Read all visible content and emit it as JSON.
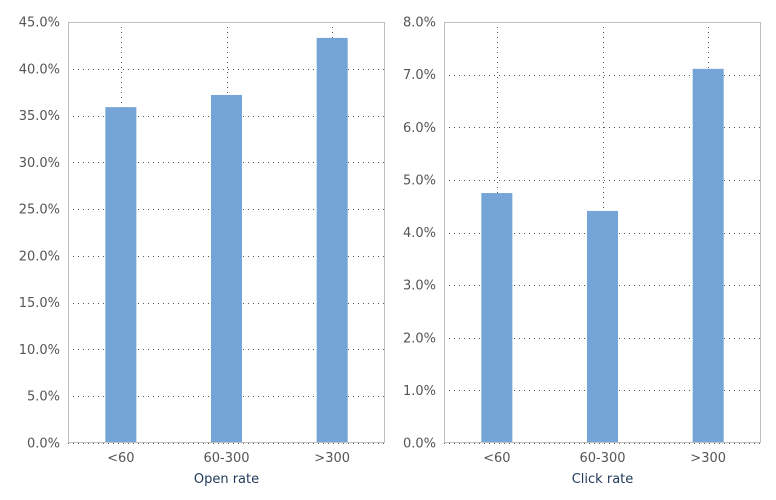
{
  "colors": {
    "bar": "#75a5d7",
    "frame": "#bfbfbf",
    "grid": "#555555",
    "tick_text": "#555555",
    "axis_label": "#1f3a5a"
  },
  "chart_data": [
    {
      "type": "bar",
      "categories": [
        "<60",
        "60-300",
        ">300"
      ],
      "values": [
        0.359,
        0.372,
        0.433
      ],
      "xlabel": "Open rate",
      "ylabel": "",
      "ylim": [
        0,
        0.45
      ],
      "yticks": [
        0,
        0.05,
        0.1,
        0.15,
        0.2,
        0.25,
        0.3,
        0.35,
        0.4,
        0.45
      ],
      "ytick_labels": [
        "0.0%",
        "5.0%",
        "10.0%",
        "15.0%",
        "20.0%",
        "25.0%",
        "30.0%",
        "35.0%",
        "40.0%",
        "45.0%"
      ],
      "grid": true
    },
    {
      "type": "bar",
      "categories": [
        "<60",
        "60-300",
        ">300"
      ],
      "values": [
        0.0475,
        0.0441,
        0.0711
      ],
      "xlabel": "Click rate",
      "ylabel": "",
      "ylim": [
        0,
        0.08
      ],
      "yticks": [
        0,
        0.01,
        0.02,
        0.03,
        0.04,
        0.05,
        0.06,
        0.07,
        0.08
      ],
      "ytick_labels": [
        "0.0%",
        "1.0%",
        "2.0%",
        "3.0%",
        "4.0%",
        "5.0%",
        "6.0%",
        "7.0%",
        "8.0%"
      ],
      "grid": true
    }
  ]
}
